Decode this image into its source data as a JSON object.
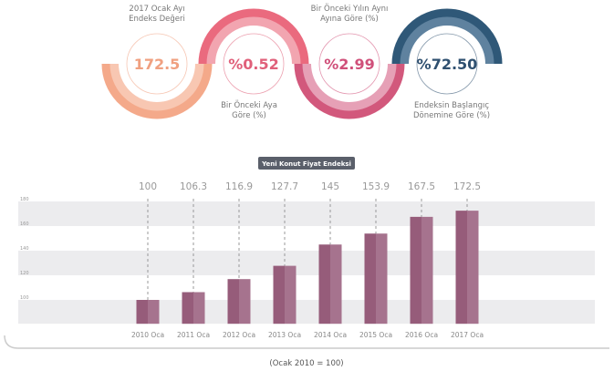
{
  "indicators": [
    {
      "value": "172.5",
      "label": [
        "2017 Ocak Ayı",
        "Endeks Değeri"
      ],
      "color": "#f0a080",
      "arc": "#f4a98a",
      "arc_inner": "#f8c7b2"
    },
    {
      "value": "%0.52",
      "label": [
        "Bir Önceki Aya",
        "Göre (%)"
      ],
      "color": "#e0607a",
      "arc": "#ea6a7e",
      "arc_inner": "#f2a5b0"
    },
    {
      "value": "%2.99",
      "label": [
        "Bir Önceki Yılın Aynı",
        "Ayına Göre (%)"
      ],
      "color": "#d0507a",
      "arc": "#d2587c",
      "arc_inner": "#e6a0b6"
    },
    {
      "value": "%72.50",
      "label": [
        "Endeksin Başlangıç",
        "Dönemine Göre (%)"
      ],
      "color": "#2f5070",
      "arc": "#2f5878",
      "arc_inner": "#5f829f"
    }
  ],
  "chart_data": {
    "type": "bar",
    "title": "Yeni Konut Fiyat Endeksi",
    "categories": [
      "2010 Oca",
      "2011 Oca",
      "2012 Oca",
      "2013 Oca",
      "2014 Oca",
      "2015 Oca",
      "2016 Oca",
      "2017 Oca"
    ],
    "values": [
      100,
      106.3,
      116.9,
      127.7,
      145,
      153.9,
      167.5,
      172.5
    ],
    "value_labels": [
      "100",
      "106.3",
      "116.9",
      "127.7",
      "145",
      "153.9",
      "167.5",
      "172.5"
    ],
    "yticks": [
      100,
      120,
      140,
      160,
      180
    ],
    "ylim": [
      80,
      180
    ],
    "grid": "alternating bands",
    "bar_color": "#9a6480",
    "footnote": "(Ocak 2010 = 100)"
  }
}
